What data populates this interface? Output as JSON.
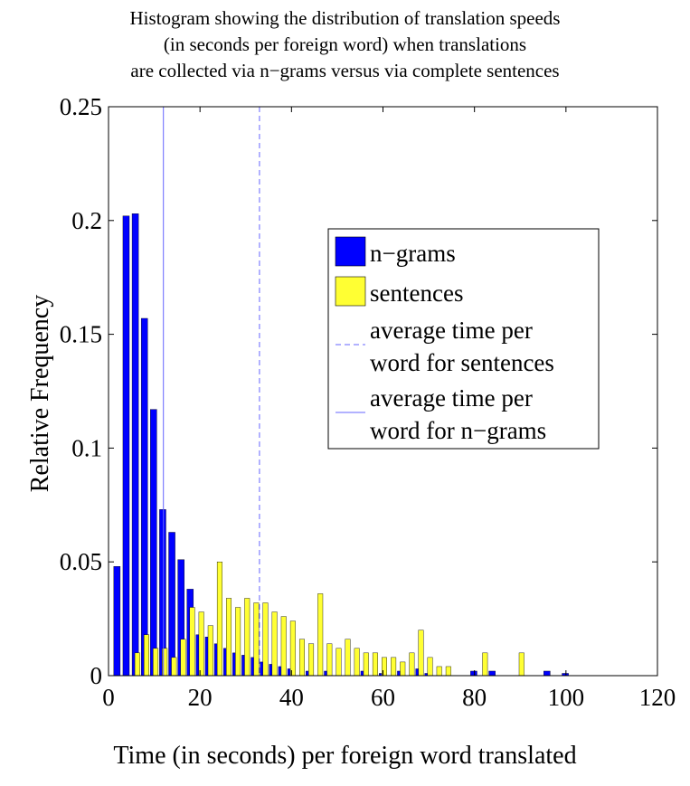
{
  "chart_data": {
    "type": "bar",
    "title_lines": [
      "Histogram showing the distribution of translation speeds",
      "(in seconds per foreign word) when translations",
      "are collected via n−grams versus via complete sentences"
    ],
    "xlabel": "Time (in seconds) per foreign word translated",
    "ylabel": "Relative Frequency",
    "xlim": [
      0,
      120
    ],
    "ylim": [
      0,
      0.25
    ],
    "xticks": [
      "0",
      "20",
      "40",
      "60",
      "80",
      "100",
      "120"
    ],
    "yticks": [
      "0",
      "0.05",
      "0.1",
      "0.15",
      "0.2",
      "0.25"
    ],
    "bin_width": 2,
    "grid": false,
    "legend_position": "center-right",
    "legend": {
      "ngrams": "n−grams",
      "sentences": "sentences",
      "avg_sentences": [
        "average time per",
        "word for sentences"
      ],
      "avg_ngrams": [
        "average time per",
        "word for n−grams"
      ]
    },
    "colors": {
      "ngrams": "#0000ff",
      "sentences": "#ffff33",
      "avg_line": "#6666ff"
    },
    "series": [
      {
        "name": "n−grams",
        "x": [
          2,
          4,
          6,
          8,
          10,
          12,
          14,
          16,
          18,
          20,
          22,
          24,
          26,
          28,
          30,
          32,
          34,
          36,
          38,
          40,
          44,
          48,
          56,
          60,
          64,
          68,
          70,
          80,
          84,
          96,
          100
        ],
        "values": [
          0.048,
          0.202,
          0.203,
          0.157,
          0.117,
          0.073,
          0.063,
          0.051,
          0.038,
          0.018,
          0.017,
          0.014,
          0.012,
          0.01,
          0.009,
          0.008,
          0.006,
          0.005,
          0.004,
          0.003,
          0.002,
          0.002,
          0.002,
          0.001,
          0.002,
          0.003,
          0.001,
          0.002,
          0.002,
          0.002,
          0.001
        ]
      },
      {
        "name": "sentences",
        "x": [
          6,
          8,
          10,
          12,
          14,
          16,
          18,
          20,
          22,
          24,
          26,
          28,
          30,
          32,
          34,
          36,
          38,
          40,
          42,
          44,
          46,
          48,
          50,
          52,
          54,
          56,
          58,
          60,
          62,
          64,
          66,
          68,
          70,
          72,
          74,
          82,
          90
        ],
        "values": [
          0.01,
          0.018,
          0.012,
          0.012,
          0.008,
          0.016,
          0.03,
          0.028,
          0.022,
          0.05,
          0.034,
          0.03,
          0.034,
          0.032,
          0.032,
          0.028,
          0.026,
          0.024,
          0.016,
          0.014,
          0.036,
          0.014,
          0.012,
          0.016,
          0.012,
          0.01,
          0.01,
          0.008,
          0.008,
          0.006,
          0.01,
          0.02,
          0.008,
          0.004,
          0.004,
          0.01,
          0.01
        ]
      }
    ],
    "avg_ngrams": 12,
    "avg_sentences": 33
  }
}
